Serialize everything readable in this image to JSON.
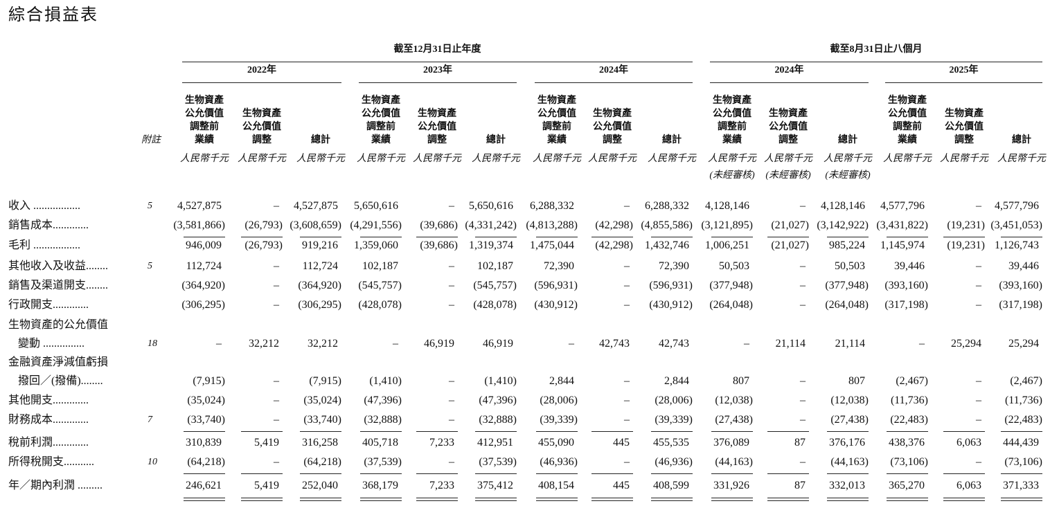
{
  "title": "綜合損益表",
  "note_header": "附註",
  "groups": [
    {
      "title": "截至12月31日止年度",
      "periods": [
        {
          "year": "2022年",
          "columns": [
            {
              "heading": [
                "生物資產",
                "公允價值",
                "調整前",
                "業績"
              ],
              "unit": [
                "人民幣千元"
              ]
            },
            {
              "heading": [
                "生物資產",
                "公允價值",
                "調整"
              ],
              "unit": [
                "人民幣千元"
              ]
            },
            {
              "heading": [
                "總計"
              ],
              "unit": [
                "人民幣千元"
              ]
            }
          ]
        },
        {
          "year": "2023年",
          "columns": [
            {
              "heading": [
                "生物資產",
                "公允價值",
                "調整前",
                "業績"
              ],
              "unit": [
                "人民幣千元"
              ]
            },
            {
              "heading": [
                "生物資產",
                "公允價值",
                "調整"
              ],
              "unit": [
                "人民幣千元"
              ]
            },
            {
              "heading": [
                "總計"
              ],
              "unit": [
                "人民幣千元"
              ]
            }
          ]
        },
        {
          "year": "2024年",
          "columns": [
            {
              "heading": [
                "生物資產",
                "公允價值",
                "調整前",
                "業績"
              ],
              "unit": [
                "人民幣千元"
              ]
            },
            {
              "heading": [
                "生物資產",
                "公允價值",
                "調整"
              ],
              "unit": [
                "人民幣千元"
              ]
            },
            {
              "heading": [
                "總計"
              ],
              "unit": [
                "人民幣千元"
              ]
            }
          ]
        }
      ]
    },
    {
      "title": "截至8月31日止八個月",
      "periods": [
        {
          "year": "2024年",
          "columns": [
            {
              "heading": [
                "生物資產",
                "公允價值",
                "調整前",
                "業績"
              ],
              "unit": [
                "人民幣千元",
                "(未經審核)"
              ]
            },
            {
              "heading": [
                "生物資產",
                "公允價值",
                "調整"
              ],
              "unit": [
                "人民幣千元",
                "(未經審核)"
              ]
            },
            {
              "heading": [
                "總計"
              ],
              "unit": [
                "人民幣千元",
                "(未經審核)"
              ]
            }
          ]
        },
        {
          "year": "2025年",
          "columns": [
            {
              "heading": [
                "生物資產",
                "公允價值",
                "調整前",
                "業績"
              ],
              "unit": [
                "人民幣千元"
              ]
            },
            {
              "heading": [
                "生物資產",
                "公允價值",
                "調整"
              ],
              "unit": [
                "人民幣千元"
              ]
            },
            {
              "heading": [
                "總計"
              ],
              "unit": [
                "人民幣千元"
              ]
            }
          ]
        }
      ]
    }
  ],
  "rows": [
    {
      "label": [
        "收入 ................."
      ],
      "note": "5",
      "values": [
        "4,527,875",
        "–",
        "4,527,875",
        "5,650,616",
        "–",
        "5,650,616",
        "6,288,332",
        "–",
        "6,288,332",
        "4,128,146",
        "–",
        "4,128,146",
        "4,577,796",
        "–",
        "4,577,796"
      ]
    },
    {
      "label": [
        "銷售成本............."
      ],
      "values": [
        "(3,581,866)",
        "(26,793)",
        "(3,608,659)",
        "(4,291,556)",
        "(39,686)",
        "(4,331,242)",
        "(4,813,288)",
        "(42,298)",
        "(4,855,586)",
        "(3,121,895)",
        "(21,027)",
        "(3,142,922)",
        "(3,431,822)",
        "(19,231)",
        "(3,451,053)"
      ]
    },
    {
      "label": [
        "毛利 ................."
      ],
      "values": [
        "946,009",
        "(26,793)",
        "919,216",
        "1,359,060",
        "(39,686)",
        "1,319,374",
        "1,475,044",
        "(42,298)",
        "1,432,746",
        "1,006,251",
        "(21,027)",
        "985,224",
        "1,145,974",
        "(19,231)",
        "1,126,743"
      ]
    },
    {
      "label": [
        "其他收入及收益........"
      ],
      "note": "5",
      "values": [
        "112,724",
        "–",
        "112,724",
        "102,187",
        "–",
        "102,187",
        "72,390",
        "–",
        "72,390",
        "50,503",
        "–",
        "50,503",
        "39,446",
        "–",
        "39,446"
      ]
    },
    {
      "label": [
        "銷售及渠道開支........"
      ],
      "values": [
        "(364,920)",
        "–",
        "(364,920)",
        "(545,757)",
        "–",
        "(545,757)",
        "(596,931)",
        "–",
        "(596,931)",
        "(377,948)",
        "–",
        "(377,948)",
        "(393,160)",
        "–",
        "(393,160)"
      ]
    },
    {
      "label": [
        "行政開支............."
      ],
      "values": [
        "(306,295)",
        "–",
        "(306,295)",
        "(428,078)",
        "–",
        "(428,078)",
        "(430,912)",
        "–",
        "(430,912)",
        "(264,048)",
        "–",
        "(264,048)",
        "(317,198)",
        "–",
        "(317,198)"
      ]
    },
    {
      "label": [
        "生物資產的公允價值",
        "變動 ..............."
      ],
      "note": "18",
      "values": [
        "–",
        "32,212",
        "32,212",
        "–",
        "46,919",
        "46,919",
        "–",
        "42,743",
        "42,743",
        "–",
        "21,114",
        "21,114",
        "–",
        "25,294",
        "25,294"
      ]
    },
    {
      "label": [
        "金融資產淨減值虧損",
        "撥回／(撥備)........"
      ],
      "values": [
        "(7,915)",
        "–",
        "(7,915)",
        "(1,410)",
        "–",
        "(1,410)",
        "2,844",
        "–",
        "2,844",
        "807",
        "–",
        "807",
        "(2,467)",
        "–",
        "(2,467)"
      ]
    },
    {
      "label": [
        "其他開支............."
      ],
      "values": [
        "(35,024)",
        "–",
        "(35,024)",
        "(47,396)",
        "–",
        "(47,396)",
        "(28,006)",
        "–",
        "(28,006)",
        "(12,038)",
        "–",
        "(12,038)",
        "(11,736)",
        "–",
        "(11,736)"
      ]
    },
    {
      "label": [
        "財務成本............."
      ],
      "note": "7",
      "values": [
        "(33,740)",
        "–",
        "(33,740)",
        "(32,888)",
        "–",
        "(32,888)",
        "(39,339)",
        "–",
        "(39,339)",
        "(27,438)",
        "–",
        "(27,438)",
        "(22,483)",
        "–",
        "(22,483)"
      ]
    },
    {
      "label": [
        "稅前利潤............."
      ],
      "values": [
        "310,839",
        "5,419",
        "316,258",
        "405,718",
        "7,233",
        "412,951",
        "455,090",
        "445",
        "455,535",
        "376,089",
        "87",
        "376,176",
        "438,376",
        "6,063",
        "444,439"
      ]
    },
    {
      "label": [
        "所得稅開支..........."
      ],
      "note": "10",
      "values": [
        "(64,218)",
        "–",
        "(64,218)",
        "(37,539)",
        "–",
        "(37,539)",
        "(46,936)",
        "–",
        "(46,936)",
        "(44,163)",
        "–",
        "(44,163)",
        "(73,106)",
        "–",
        "(73,106)"
      ]
    },
    {
      "label": [
        "年／期內利潤 ........."
      ],
      "values": [
        "246,621",
        "5,419",
        "252,040",
        "368,179",
        "7,233",
        "375,412",
        "408,154",
        "445",
        "408,599",
        "331,926",
        "87",
        "332,013",
        "365,270",
        "6,063",
        "371,333"
      ]
    }
  ]
}
